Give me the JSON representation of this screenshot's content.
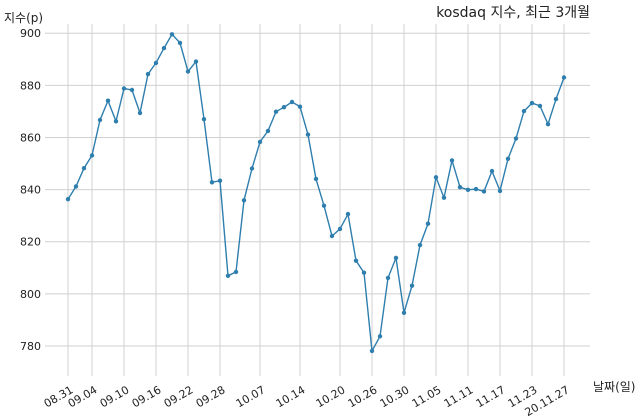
{
  "chart_data": {
    "type": "line",
    "title": "kosdaq 지수, 최근 3개월",
    "xlabel": "날짜(일)",
    "ylabel": "지수(p)",
    "grid": true,
    "ylim": [
      770,
      902
    ],
    "yticks": [
      780,
      800,
      820,
      840,
      860,
      880,
      900
    ],
    "xtick_labels": [
      "08.31",
      "09.04",
      "09.10",
      "09.16",
      "09.22",
      "09.28",
      "10.07",
      "10.14",
      "10.20",
      "10.26",
      "10.30",
      "11.05",
      "11.11",
      "11.17",
      "11.23",
      "20.11.27"
    ],
    "xtick_index": [
      2,
      5,
      9,
      13,
      17,
      21,
      26,
      31,
      36,
      40,
      44,
      48,
      52,
      56,
      60,
      64
    ],
    "series": [
      {
        "color": "#2e7eae",
        "x": [
          "08.27",
          "08.28",
          "08.31",
          "09.01",
          "09.02",
          "09.03",
          "09.04",
          "09.07",
          "09.08",
          "09.09",
          "09.10",
          "09.11",
          "09.14",
          "09.15",
          "09.16",
          "09.17",
          "09.18",
          "09.21",
          "09.22",
          "09.23",
          "09.24",
          "09.25",
          "09.28",
          "09.29",
          "10.05",
          "10.06",
          "10.07",
          "10.08",
          "10.12",
          "10.13",
          "10.14",
          "10.15",
          "10.16",
          "10.19",
          "10.20",
          "10.21",
          "10.22",
          "10.23",
          "10.26",
          "10.27",
          "10.28",
          "10.29",
          "10.30",
          "11.02",
          "11.03",
          "11.04",
          "11.05",
          "11.06",
          "11.09",
          "11.10",
          "11.11",
          "11.12",
          "11.13",
          "11.16",
          "11.17",
          "11.18",
          "11.19",
          "11.20",
          "11.23",
          "11.24",
          "11.25",
          "11.26",
          "11.27"
        ],
        "values": [
          836.3,
          841.2,
          848.2,
          853.1,
          866.7,
          874.1,
          866.2,
          878.8,
          878.2,
          869.4,
          884.3,
          888.6,
          894.3,
          899.6,
          896.3,
          885.3,
          889.1,
          867.0,
          842.8,
          843.4,
          806.9,
          808.4,
          835.9,
          848.1,
          858.3,
          862.5,
          869.9,
          871.6,
          873.6,
          871.8,
          861.1,
          844.1,
          833.8,
          822.2,
          824.9,
          830.6,
          812.7,
          808.1,
          778.1,
          783.7,
          806.1,
          813.8,
          792.7,
          803.1,
          818.7,
          826.9,
          844.7,
          836.9,
          851.2,
          840.9,
          839.9,
          840.2,
          839.3,
          847.1,
          839.5,
          851.8,
          859.6,
          870.1,
          873.2,
          872.1,
          865.1,
          874.7,
          883.0
        ]
      }
    ]
  }
}
